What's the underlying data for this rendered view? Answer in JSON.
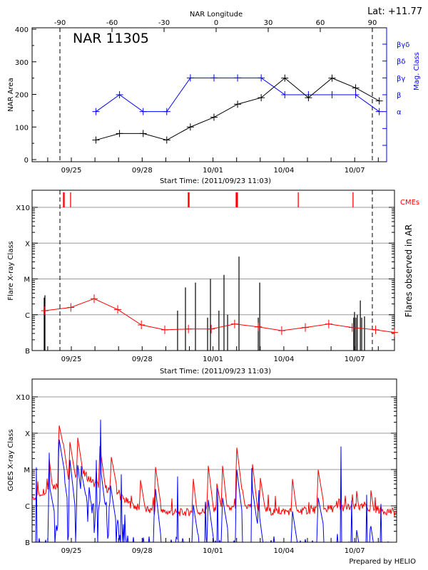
{
  "chart_data": [
    {
      "type": "line",
      "title": "NAR 11305",
      "top_label": "Lat: +11.77",
      "xlabel": "Start Time: (2011/09/23 11:03)",
      "x_top_label": "NAR Longitude",
      "x_top_ticks": [
        "-90",
        "-60",
        "-30",
        "0",
        "30",
        "60",
        "90"
      ],
      "x_ticks": [
        "09/25",
        "09/28",
        "10/01",
        "10/04",
        "10/07"
      ],
      "ylabel": "NAR Area",
      "ylim": [
        0,
        400
      ],
      "y_ticks": [
        "0",
        "100",
        "200",
        "300",
        "400"
      ],
      "y2label": "Mag. Class",
      "y2_ticks": [
        "",
        "",
        "α",
        "β",
        "βγ",
        "βδ",
        "βγδ"
      ],
      "limb_longitudes": [
        -90,
        90
      ],
      "colors": {
        "area": "#000000",
        "mag_class": "#0000ff"
      },
      "x": [
        "09/26 01:00",
        "09/27 01:00",
        "09/28 01:00",
        "09/29 01:00",
        "09/30 01:00",
        "10/01 01:00",
        "10/02 01:00",
        "10/03 01:00",
        "10/04 01:00",
        "10/05 01:00",
        "10/06 01:00",
        "10/07 01:00",
        "10/08 01:00"
      ],
      "series": [
        {
          "key": "area",
          "values": [
            60,
            80,
            80,
            60,
            100,
            130,
            170,
            190,
            250,
            190,
            250,
            220,
            180
          ]
        },
        {
          "key": "mag_class",
          "values": [
            "α",
            "β",
            "α",
            "α",
            "βγ",
            "βγ",
            "βγ",
            "βγ",
            "β",
            "β",
            "β",
            "β",
            "α"
          ]
        }
      ]
    },
    {
      "type": "bar",
      "xlabel": "Start Time: (2011/09/23 11:03)",
      "x_ticks": [
        "09/25",
        "09/28",
        "10/01",
        "10/04",
        "10/07"
      ],
      "ylabel": "Flare X-ray Class",
      "y2label": "Flares observed in AR",
      "y_ticks": [
        "B",
        "C",
        "M",
        "X",
        "X10"
      ],
      "ylim": [
        "B1.0",
        "X10.0"
      ],
      "y_scale": "log",
      "grid": true,
      "cme_label": "CMEs",
      "colors": {
        "flares": "#000000",
        "background": "#ff0000",
        "cmes": "#ff0000",
        "grid": "#999999"
      },
      "cmes": [
        "09/24 16:00",
        "09/24 16:45",
        "09/24 23:15",
        "09/29 22:50",
        "09/29 23:40",
        "10/01 23:30",
        "10/02 00:10",
        "10/02 00:50",
        "10/04 14:40",
        "10/06 22:20"
      ],
      "flares": {
        "x": [
          "09/23 20:25",
          "09/23 21:10",
          "09/29 12:00",
          "09/29 20:00",
          "09/30 06:10",
          "09/30 18:30",
          "09/30 21:25",
          "10/01 06:00",
          "10/01 11:10",
          "10/01 14:50",
          "10/02 02:25",
          "10/02 22:00",
          "10/02 23:30",
          "10/06 23:05",
          "10/06 23:50",
          "10/07 01:15",
          "10/07 02:40",
          "10/07 05:45",
          "10/07 07:10",
          "10/07 10:00"
        ],
        "values": [
          "C3.0",
          "C3.5",
          "C1.3",
          "C5.8",
          "C7.9",
          "B8.3",
          "M1.0",
          "C1.3",
          "M1.3",
          "C1.0",
          "M4.2",
          "B8.3",
          "C7.9",
          "B8.3",
          "C1.2",
          "B8.3",
          "C1.0",
          "C2.5",
          "B8.3",
          "B9.0"
        ]
      },
      "background_line": {
        "x": [
          "09/23 21:00",
          "09/24 23:30",
          "09/25 23:10",
          "09/26 23:10",
          "09/27 23:10",
          "09/28 23:00",
          "09/29 23:00",
          "09/30 22:10",
          "10/01 22:00",
          "10/02 22:00",
          "10/03 21:50",
          "10/04 21:50",
          "10/05 21:40",
          "10/06 21:30",
          "10/07 21:20",
          "10/08 22:00"
        ],
        "values": [
          "C1.3",
          "C1.6",
          "C2.8",
          "C1.4",
          "B5.2",
          "B3.8",
          "B4.0",
          "B4.0",
          "B5.5",
          "B4.6",
          "B3.6",
          "B4.4",
          "B5.5",
          "B4.4",
          "B3.8",
          "B3.2"
        ]
      }
    },
    {
      "type": "line",
      "xlabel": "",
      "x_ticks": [
        "09/25",
        "09/28",
        "10/01",
        "10/04",
        "10/07"
      ],
      "ylabel": "GOES X-ray Class",
      "y_ticks": [
        "B",
        "C",
        "M",
        "X",
        "X10"
      ],
      "ylim": [
        "B1.0",
        "X10.0"
      ],
      "y_scale": "log",
      "grid": true,
      "colors": {
        "long_channel": "#ff0000",
        "short_channel": "#0000ff"
      },
      "series": [
        {
          "key": "long_channel",
          "baseline": {
            "x": [
              "09/23 12:00",
              "09/24 00:00",
              "09/24 12:00",
              "09/25 00:00",
              "09/25 12:00",
              "09/26 00:00",
              "09/26 12:00",
              "09/27 00:00",
              "09/27 12:00",
              "09/28 00:00",
              "09/28 12:00",
              "09/29 12:00",
              "09/30 12:00",
              "10/01 12:00",
              "10/02 12:00",
              "10/03 12:00",
              "10/04 12:00",
              "10/05 12:00",
              "10/06 12:00",
              "10/07 12:00",
              "10/08 12:00",
              "10/09 12:00"
            ],
            "values": [
              "C1.8",
              "C3.0",
              "C4.0",
              "C5.0",
              "C8.0",
              "C4.0",
              "C3.0",
              "C2.0",
              "C1.1",
              "B8.0",
              "B7.0",
              "B6.5",
              "B7.0",
              "B8.0",
              "C1.0",
              "B7.0",
              "B7.0",
              "B8.0",
              "B9.0",
              "B9.0",
              "B7.0",
              "B5.5"
            ]
          },
          "peaks": {
            "x": [
              "09/24 01:30",
              "09/24 11:00",
              "09/24 15:20",
              "09/24 22:30",
              "09/25 06:30",
              "09/26 05:00",
              "09/26 16:00",
              "09/27 21:40",
              "09/28 13:30",
              "09/30 03:20",
              "09/30 19:10",
              "10/01 03:50",
              "10/01 09:40",
              "10/02 00:10",
              "10/02 06:00",
              "10/02 16:10",
              "10/02 23:30",
              "10/04 08:10",
              "10/05 10:50",
              "10/07 02:00",
              "10/07 16:30"
            ],
            "values": [
              "M2.0",
              "X2.0",
              "M6.9",
              "M5.8",
              "M7.6",
              "M4.4",
              "M2.7",
              "C6.6",
              "M1.2",
              "C8.0",
              "M1.3",
              "C4.2",
              "M1.3",
              "M4.1",
              "C2.8",
              "M1.4",
              "C7.6",
              "C7.3",
              "M1.0",
              "C2.6",
              "C2.7"
            ]
          }
        },
        {
          "key": "short_channel",
          "baseline": {
            "x": [
              "09/23 12:00",
              "09/24 00:00",
              "09/24 12:00",
              "09/25 12:00",
              "09/26 12:00",
              "09/27 00:00",
              "09/27 12:00",
              "10/09 12:00"
            ],
            "values": [
              "A3.0",
              "B1.5",
              "B4.0",
              "B5.0",
              "B3.0",
              "B1.2",
              "A3.0",
              "A2.0"
            ]
          },
          "peaks": {
            "x": [
              "09/24 01:30",
              "09/24 11:00",
              "09/24 14:30",
              "09/24 22:30",
              "09/25 05:50",
              "09/25 10:10",
              "09/25 17:25",
              "09/26 05:45",
              "09/26 15:10",
              "09/28 13:30",
              "09/30 03:20",
              "09/30 19:10",
              "10/01 09:40",
              "10/02 00:10",
              "10/02 16:10",
              "10/02 21:20",
              "10/04 08:10",
              "10/05 10:50",
              "10/07 01:20",
              "10/07 16:30"
            ],
            "values": [
              "C3.9",
              "M8.7",
              "M1.6",
              "M1.9",
              "M1.9",
              "C8.7",
              "C4.9",
              "M1.1",
              "C4.9",
              "C3.0",
              "C1.4",
              "C1.5",
              "C1.7",
              "M1.0",
              "C2.8",
              "C1.3",
              "B9.1",
              "C1.7",
              "B2.8",
              "B2.8"
            ]
          }
        }
      ]
    }
  ],
  "footer": {
    "credit": "Prepared by HELIO"
  }
}
